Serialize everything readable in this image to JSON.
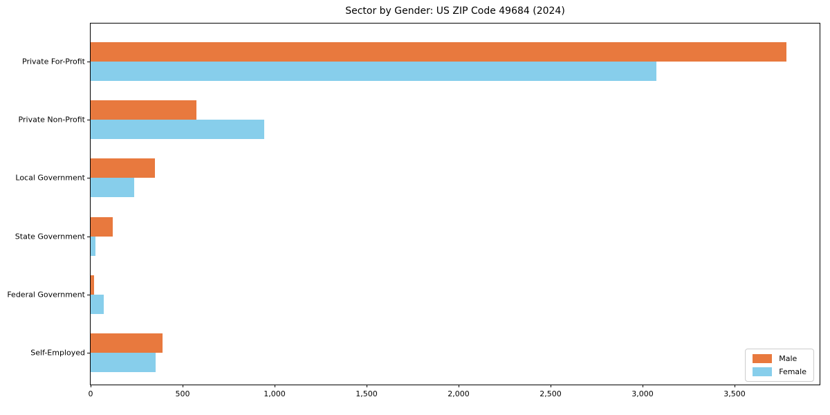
{
  "chart_data": {
    "type": "bar",
    "orientation": "horizontal",
    "title": "Sector by Gender: US ZIP Code 49684 (2024)",
    "categories": [
      "Private For-Profit",
      "Private Non-Profit",
      "Local Government",
      "State Government",
      "Federal Government",
      "Self-Employed"
    ],
    "series": [
      {
        "name": "Male",
        "color": "#e8793e",
        "values": [
          3780,
          575,
          350,
          120,
          20,
          390
        ]
      },
      {
        "name": "Female",
        "color": "#87ceeb",
        "values": [
          3075,
          945,
          235,
          25,
          70,
          355
        ]
      }
    ],
    "xlim": [
      0,
      3970
    ],
    "xticks": [
      0,
      500,
      1000,
      1500,
      2000,
      2500,
      3000,
      3500
    ],
    "xtick_labels": [
      "0",
      "500",
      "1,000",
      "1,500",
      "2,000",
      "2,500",
      "3,000",
      "3,500"
    ],
    "xlabel": "",
    "ylabel": "",
    "grid": false,
    "legend_position": "lower right",
    "colors": {
      "background": "#ffffff",
      "spine": "#000000",
      "text": "#000000",
      "legend_border": "#cccccc"
    }
  }
}
